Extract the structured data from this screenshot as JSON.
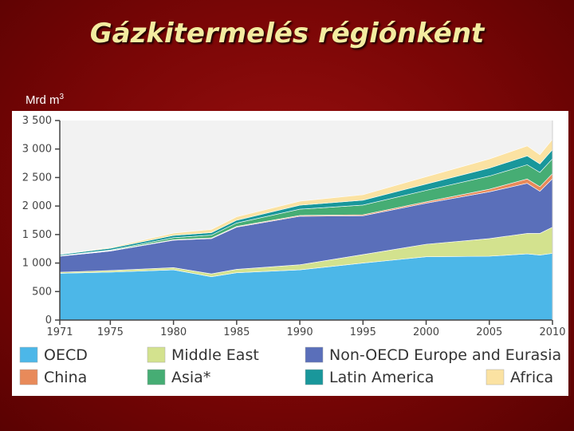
{
  "slide": {
    "title": "Gázkitermelés régiónként",
    "unit": "Mrd m",
    "unit_sup": "3"
  },
  "colors": {
    "OECD": "#4cb7e8",
    "Middle East": "#d3e28e",
    "Non-OECD Europe and Eurasia": "#5a6fba",
    "China": "#e88a5a",
    "Asia*": "#46ad74",
    "Latin America": "#19979b",
    "Africa": "#fbe2a2"
  },
  "chart_data": {
    "type": "area",
    "stacked": true,
    "x": [
      1971,
      1975,
      1980,
      1983,
      1985,
      1990,
      1995,
      2000,
      2005,
      2008,
      2009,
      2010
    ],
    "ylim": [
      0,
      3500
    ],
    "xlim": [
      1971,
      2010
    ],
    "y_ticks": [
      {
        "value": 0,
        "label": "0"
      },
      {
        "value": 500,
        "label": "500"
      },
      {
        "value": 1000,
        "label": "1 000"
      },
      {
        "value": 1500,
        "label": "1 500"
      },
      {
        "value": 2000,
        "label": "2 000"
      },
      {
        "value": 2500,
        "label": "2 500"
      },
      {
        "value": 3000,
        "label": "3 000"
      },
      {
        "value": 3500,
        "label": "3 500"
      }
    ],
    "x_ticks": [
      1971,
      1975,
      1980,
      1985,
      1990,
      1995,
      2000,
      2005,
      2010
    ],
    "legend_position": "bottom",
    "series": [
      {
        "name": "OECD",
        "values": [
          820,
          840,
          880,
          760,
          830,
          880,
          1000,
          1110,
          1120,
          1160,
          1140,
          1170
        ]
      },
      {
        "name": "Middle East",
        "values": [
          20,
          30,
          40,
          50,
          60,
          90,
          150,
          220,
          310,
          360,
          380,
          460
        ]
      },
      {
        "name": "Non-OECD Europe and Eurasia",
        "values": [
          280,
          340,
          480,
          620,
          740,
          850,
          680,
          720,
          820,
          880,
          740,
          850
        ]
      },
      {
        "name": "China",
        "values": [
          5,
          8,
          10,
          10,
          12,
          15,
          18,
          25,
          45,
          75,
          80,
          90
        ]
      },
      {
        "name": "Asia*",
        "values": [
          5,
          10,
          35,
          50,
          60,
          110,
          170,
          200,
          230,
          250,
          250,
          260
        ]
      },
      {
        "name": "Latin America",
        "values": [
          20,
          30,
          40,
          45,
          50,
          70,
          85,
          110,
          140,
          155,
          150,
          160
        ]
      },
      {
        "name": "Africa",
        "values": [
          5,
          15,
          40,
          55,
          60,
          70,
          95,
          130,
          160,
          175,
          160,
          180
        ]
      }
    ],
    "legend": [
      {
        "label": "OECD"
      },
      {
        "label": "Middle East"
      },
      {
        "label": "Non-OECD Europe and Eurasia"
      },
      {
        "label": "China"
      },
      {
        "label": "Asia*"
      },
      {
        "label": "Latin America"
      },
      {
        "label": "Africa"
      }
    ]
  }
}
